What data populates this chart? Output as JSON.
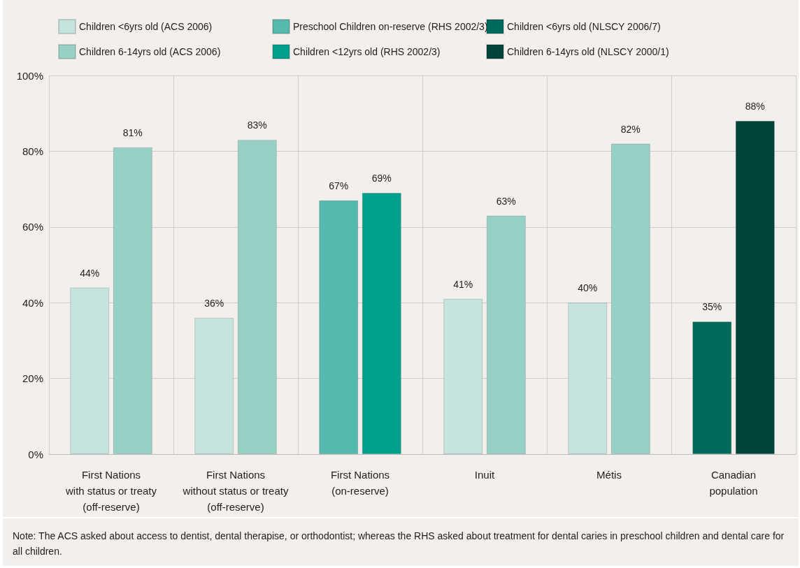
{
  "chart_data": {
    "type": "bar",
    "categories": [
      "First Nations\nwith status or treaty\n(off-reserve)",
      "First Nations\nwithout status or treaty\n(off-reserve)",
      "First Nations\n(on-reserve)",
      "Inuit",
      "Métis",
      "Canadian\npopulation"
    ],
    "series": [
      {
        "name": "Children <6yrs old (ACS 2006)",
        "color": "#c5e4de",
        "values": [
          44,
          36,
          null,
          41,
          40,
          null
        ],
        "value_labels": [
          "44%",
          "36%",
          null,
          "41%",
          "40%",
          null
        ]
      },
      {
        "name": "Children 6-14yrs old (ACS 2006)",
        "color": "#98d0c6",
        "values": [
          81,
          83,
          null,
          63,
          82,
          null
        ],
        "value_labels": [
          "81%",
          "83%",
          null,
          "63%",
          "82%",
          null
        ]
      },
      {
        "name": "Preschool Children on-reserve (RHS 2002/3)",
        "color": "#55b9ad",
        "values": [
          null,
          null,
          67,
          null,
          null,
          null
        ],
        "value_labels": [
          null,
          null,
          "67%",
          null,
          null,
          null
        ]
      },
      {
        "name": "Children <12yrs old (RHS 2002/3)",
        "color": "#00a08f",
        "values": [
          null,
          null,
          69,
          null,
          null,
          null
        ],
        "value_labels": [
          null,
          null,
          "69%",
          null,
          null,
          null
        ]
      },
      {
        "name": "Children <6yrs old (NLSCY 2006/7)",
        "color": "#006b5c",
        "values": [
          null,
          null,
          null,
          null,
          null,
          35
        ],
        "value_labels": [
          null,
          null,
          null,
          null,
          null,
          "35%"
        ]
      },
      {
        "name": "Children 6-14yrs old (NLSCY 2000/1)",
        "color": "#00443a",
        "values": [
          null,
          null,
          null,
          null,
          null,
          88
        ],
        "value_labels": [
          null,
          null,
          null,
          null,
          null,
          "88%"
        ]
      }
    ],
    "ylim": [
      0,
      100
    ],
    "yticks": [
      {
        "value": 0,
        "label": "0%"
      },
      {
        "value": 20,
        "label": "20%"
      },
      {
        "value": 40,
        "label": "40%"
      },
      {
        "value": 60,
        "label": "60%"
      },
      {
        "value": 80,
        "label": "80%"
      },
      {
        "value": 100,
        "label": "100%"
      }
    ],
    "grid": true,
    "legend": "top",
    "annotations": [
      "Note: The ACS asked about access to dentist, dental therapise, or orthodontist; whereas the RHS asked about treatment for dental caries in preschool children and dental care for all children."
    ]
  }
}
